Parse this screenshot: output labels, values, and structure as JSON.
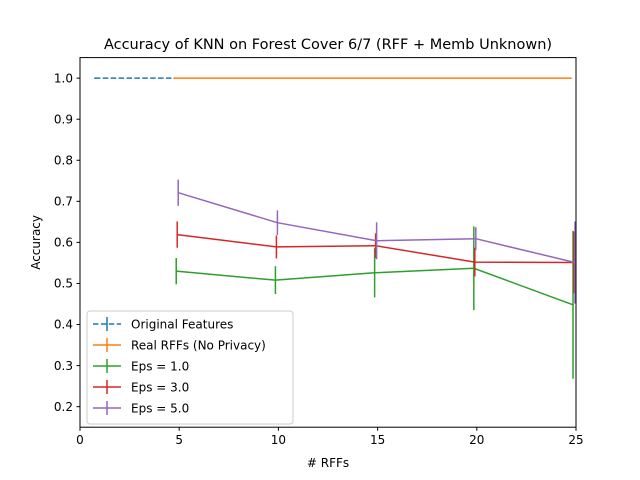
{
  "chart_data": {
    "type": "line",
    "title": "Accuracy of KNN on Forest Cover 6/7 (RFF + Memb Unknown)",
    "xlabel": "# RFFs",
    "ylabel": "Accuracy",
    "xlim": [
      0,
      25
    ],
    "ylim": [
      0.15,
      1.05
    ],
    "xticks": [
      0,
      5,
      10,
      15,
      20,
      25
    ],
    "yticks": [
      0.2,
      0.3,
      0.4,
      0.5,
      0.6,
      0.7,
      0.8,
      0.9,
      1.0
    ],
    "xtick_labels": [
      "0",
      "5",
      "10",
      "15",
      "20",
      "25"
    ],
    "ytick_labels": [
      "0.2",
      "0.3",
      "0.4",
      "0.5",
      "0.6",
      "0.7",
      "0.8",
      "0.9",
      "1.0"
    ],
    "grid": false,
    "legend_position": "lower-left",
    "series": [
      {
        "name": "Original Features",
        "color": "#1f77b4",
        "dashed": true,
        "x": [
          0.75,
          4.75
        ],
        "y": [
          1.0,
          1.0
        ],
        "err": [
          0.0,
          0.0
        ]
      },
      {
        "name": "Real RFFs (No Privacy)",
        "color": "#ff7f0e",
        "dashed": false,
        "x": [
          4.75,
          24.75
        ],
        "y": [
          1.0,
          1.0
        ],
        "err": [
          0.0,
          0.0
        ]
      },
      {
        "name": "Eps = 1.0",
        "color": "#2ca02c",
        "dashed": false,
        "x": [
          4.85,
          9.85,
          14.85,
          19.85,
          24.85
        ],
        "y": [
          0.53,
          0.508,
          0.526,
          0.537,
          0.448
        ],
        "err": [
          0.032,
          0.034,
          0.06,
          0.102,
          0.18
        ]
      },
      {
        "name": "Eps = 3.0",
        "color": "#d62728",
        "dashed": false,
        "x": [
          4.9,
          9.9,
          14.9,
          19.9,
          24.9
        ],
        "y": [
          0.619,
          0.589,
          0.592,
          0.552,
          0.551
        ],
        "err": [
          0.032,
          0.028,
          0.03,
          0.035,
          0.075
        ]
      },
      {
        "name": "Eps = 5.0",
        "color": "#9467bd",
        "dashed": false,
        "x": [
          4.95,
          9.95,
          14.95,
          19.95,
          24.95
        ],
        "y": [
          0.721,
          0.648,
          0.604,
          0.609,
          0.551
        ],
        "err": [
          0.032,
          0.03,
          0.045,
          0.028,
          0.1
        ]
      }
    ]
  }
}
